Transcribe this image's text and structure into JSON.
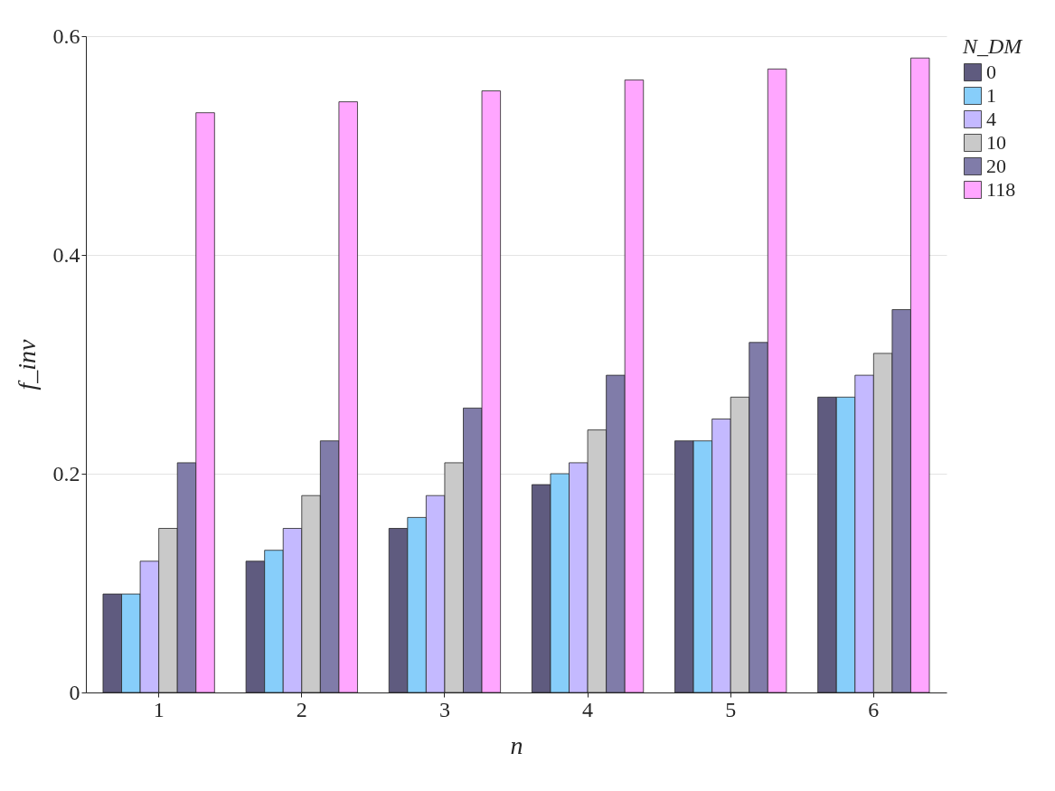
{
  "chart_data": {
    "type": "bar",
    "xlabel": "n",
    "ylabel": "f_inv",
    "legend_title": "N_DM",
    "categories": [
      "1",
      "2",
      "3",
      "4",
      "5",
      "6"
    ],
    "series": [
      {
        "name": "0",
        "color": "#5f5b7f",
        "values": [
          0.09,
          0.12,
          0.15,
          0.19,
          0.23,
          0.27
        ]
      },
      {
        "name": "1",
        "color": "#87cefa",
        "values": [
          0.09,
          0.13,
          0.16,
          0.2,
          0.23,
          0.27
        ]
      },
      {
        "name": "4",
        "color": "#c4b9ff",
        "values": [
          0.12,
          0.15,
          0.18,
          0.21,
          0.25,
          0.29
        ]
      },
      {
        "name": "10",
        "color": "#c9c9c9",
        "values": [
          0.15,
          0.18,
          0.21,
          0.24,
          0.27,
          0.31
        ]
      },
      {
        "name": "20",
        "color": "#807ca9",
        "values": [
          0.21,
          0.23,
          0.26,
          0.29,
          0.32,
          0.35
        ]
      },
      {
        "name": "118",
        "color": "#ffa6ff",
        "values": [
          0.53,
          0.54,
          0.55,
          0.56,
          0.57,
          0.58
        ]
      }
    ],
    "ylim": [
      0,
      0.6
    ],
    "yticks": [
      0,
      0.2,
      0.4,
      0.6
    ],
    "grid": "y",
    "legend": "right"
  }
}
